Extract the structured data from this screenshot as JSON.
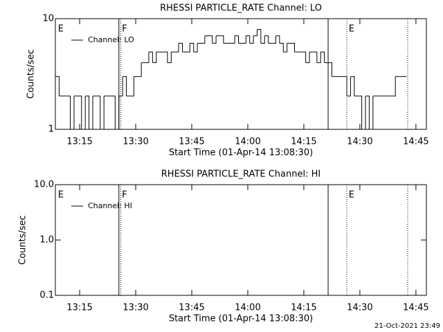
{
  "chart_data": [
    {
      "type": "line",
      "title": "RHESSI PARTICLE_RATE Channel: LO",
      "x_label": "Start Time (01-Apr-14 13:08:30)",
      "y_label": "Counts/sec",
      "log_y": true,
      "ylim": [
        1,
        10
      ],
      "yticks": [
        1,
        10
      ],
      "xlim": [
        788.5,
        887.8
      ],
      "xticks": [
        {
          "value": 795,
          "label": "13:15"
        },
        {
          "value": 810,
          "label": "13:30"
        },
        {
          "value": 825,
          "label": "13:45"
        },
        {
          "value": 840,
          "label": "14:00"
        },
        {
          "value": 855,
          "label": "14:15"
        },
        {
          "value": 870,
          "label": "14:30"
        },
        {
          "value": 885,
          "label": "14:45"
        }
      ],
      "x": [
        789,
        790,
        791,
        792,
        793,
        794,
        795,
        796,
        797,
        798,
        799,
        800,
        801,
        802,
        803,
        804,
        805,
        806,
        807,
        808,
        809,
        810,
        811,
        812,
        813,
        814,
        815,
        816,
        817,
        818,
        819,
        820,
        821,
        822,
        823,
        824,
        825,
        826,
        827,
        828,
        829,
        830,
        831,
        832,
        833,
        834,
        835,
        836,
        837,
        838,
        839,
        840,
        841,
        842,
        843,
        844,
        845,
        846,
        847,
        848,
        849,
        850,
        851,
        852,
        853,
        854,
        855,
        856,
        857,
        858,
        859,
        860,
        861,
        862,
        863,
        864,
        865,
        866,
        867,
        868,
        869,
        870,
        871,
        872,
        873,
        874,
        875,
        876,
        877,
        878,
        879,
        880,
        881,
        882
      ],
      "series": [
        {
          "name": "Channel: LO",
          "color": "#000000",
          "values": [
            3,
            2,
            2,
            2,
            1,
            2,
            2,
            1,
            2,
            1,
            2,
            2,
            1,
            2,
            2,
            2,
            1,
            2,
            3,
            2,
            2,
            3,
            3,
            4,
            4,
            5,
            4,
            5,
            5,
            5,
            4,
            5,
            5,
            6,
            5,
            5,
            6,
            5,
            6,
            6,
            7,
            7,
            6,
            7,
            7,
            6,
            6,
            6,
            7,
            6,
            6,
            7,
            6,
            7,
            8,
            6,
            7,
            6,
            6,
            7,
            6,
            5,
            6,
            6,
            5,
            5,
            5,
            4,
            5,
            5,
            4,
            5,
            4,
            4,
            3,
            3,
            3,
            3,
            2,
            3,
            2,
            2,
            1,
            2,
            1,
            2,
            2,
            2,
            2,
            2,
            2,
            3,
            3,
            3
          ]
        }
      ],
      "flags": [
        {
          "x": 805.5,
          "style": "solid"
        },
        {
          "x": 806,
          "style": "dotted"
        },
        {
          "x": 861.5,
          "style": "solid"
        },
        {
          "x": 866.5,
          "style": "dotted"
        },
        {
          "x": 882.8,
          "style": "dotted"
        }
      ],
      "flag_labels": [
        {
          "x": 789.2,
          "text": "E"
        },
        {
          "x": 806.3,
          "text": "F"
        },
        {
          "x": 867,
          "text": "E"
        }
      ]
    },
    {
      "type": "line",
      "title": "RHESSI PARTICLE_RATE Channel: HI",
      "x_label": "Start Time (01-Apr-14 13:08:30)",
      "y_label": "Counts/sec",
      "log_y": true,
      "ylim": [
        0.1,
        10
      ],
      "yticks": [
        0.1,
        {
          "value": 1,
          "label": "1.0"
        },
        {
          "value": 10,
          "label": "10.0"
        }
      ],
      "xlim": [
        788.5,
        887.8
      ],
      "xticks": [
        {
          "value": 795,
          "label": "13:15"
        },
        {
          "value": 810,
          "label": "13:30"
        },
        {
          "value": 825,
          "label": "13:45"
        },
        {
          "value": 840,
          "label": "14:00"
        },
        {
          "value": 855,
          "label": "14:15"
        },
        {
          "value": 870,
          "label": "14:30"
        },
        {
          "value": 885,
          "label": "14:45"
        }
      ],
      "x": [],
      "series": [
        {
          "name": "Channel: HI",
          "color": "#000000",
          "values": []
        }
      ],
      "flags": [
        {
          "x": 805.5,
          "style": "solid"
        },
        {
          "x": 806,
          "style": "dotted"
        },
        {
          "x": 861.5,
          "style": "solid"
        },
        {
          "x": 866.5,
          "style": "dotted"
        },
        {
          "x": 882.8,
          "style": "dotted"
        }
      ],
      "flag_labels": [
        {
          "x": 789.2,
          "text": "E"
        },
        {
          "x": 806.3,
          "text": "F"
        },
        {
          "x": 867,
          "text": "E"
        }
      ]
    }
  ],
  "footer": "21-Oct-2021 23:49"
}
